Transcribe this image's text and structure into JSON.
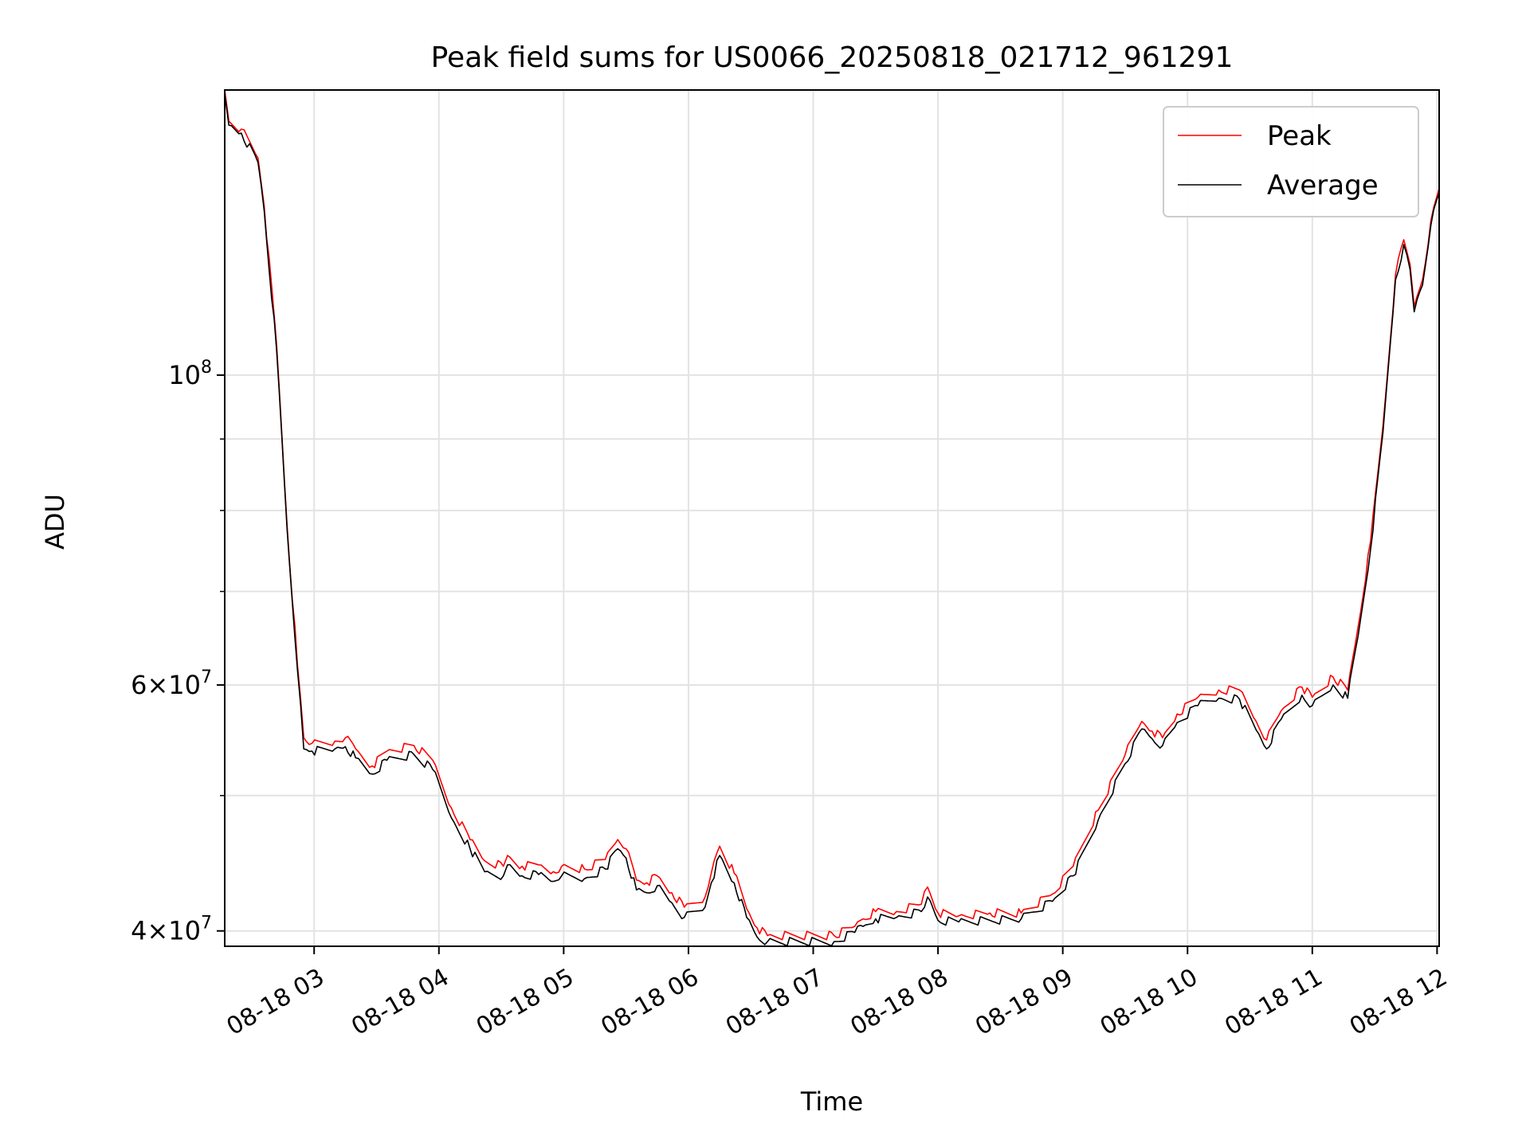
{
  "chart_data": {
    "type": "line",
    "title": "Peak field sums for US0066_20250818_021712_961291",
    "xlabel": "Time",
    "ylabel": "ADU",
    "y_scale": "log",
    "grid": true,
    "legend_position": "top-right",
    "x_range": [
      "2025-08-18 02:17",
      "2025-08-18 12:01"
    ],
    "y_range": [
      39000000,
      160000000
    ],
    "x_ticks": [
      {
        "time": "2025-08-18 03:00",
        "label": "08-18 03"
      },
      {
        "time": "2025-08-18 04:00",
        "label": "08-18 04"
      },
      {
        "time": "2025-08-18 05:00",
        "label": "08-18 05"
      },
      {
        "time": "2025-08-18 06:00",
        "label": "08-18 06"
      },
      {
        "time": "2025-08-18 07:00",
        "label": "08-18 07"
      },
      {
        "time": "2025-08-18 08:00",
        "label": "08-18 08"
      },
      {
        "time": "2025-08-18 09:00",
        "label": "08-18 09"
      },
      {
        "time": "2025-08-18 10:00",
        "label": "08-18 10"
      },
      {
        "time": "2025-08-18 11:00",
        "label": "08-18 11"
      },
      {
        "time": "2025-08-18 12:00",
        "label": "08-18 12"
      }
    ],
    "y_major_ticks": [
      {
        "value": 40000000,
        "mantissa": "4",
        "exponent": "7"
      },
      {
        "value": 60000000,
        "mantissa": "6",
        "exponent": "7"
      },
      {
        "value": 100000000,
        "mantissa": "",
        "exponent": "8"
      }
    ],
    "y_minor_ticks": [
      50000000,
      70000000,
      80000000,
      90000000
    ],
    "series": [
      {
        "name": "Peak",
        "color": "#ff0000",
        "points": [
          [
            "2025-08-18 02:17",
            160000000
          ],
          [
            "2025-08-18 02:19",
            152000000
          ],
          [
            "2025-08-18 02:25",
            150000000
          ],
          [
            "2025-08-18 02:33",
            143000000
          ],
          [
            "2025-08-18 02:36",
            132000000
          ],
          [
            "2025-08-18 02:42",
            105000000
          ],
          [
            "2025-08-18 02:47",
            78000000
          ],
          [
            "2025-08-18 02:52",
            62000000
          ],
          [
            "2025-08-18 02:55",
            55000000
          ],
          [
            "2025-08-18 02:59",
            54500000
          ],
          [
            "2025-08-18 03:10",
            54700000
          ],
          [
            "2025-08-18 03:15",
            55000000
          ],
          [
            "2025-08-18 03:20",
            54000000
          ],
          [
            "2025-08-18 03:28",
            52500000
          ],
          [
            "2025-08-18 03:35",
            53800000
          ],
          [
            "2025-08-18 03:48",
            54300000
          ],
          [
            "2025-08-18 03:57",
            53000000
          ],
          [
            "2025-08-18 04:06",
            49000000
          ],
          [
            "2025-08-18 04:15",
            46500000
          ],
          [
            "2025-08-18 04:22",
            44900000
          ],
          [
            "2025-08-18 04:31",
            44500000
          ],
          [
            "2025-08-18 04:33",
            45300000
          ],
          [
            "2025-08-18 04:40",
            44500000
          ],
          [
            "2025-08-18 04:48",
            44600000
          ],
          [
            "2025-08-18 04:55",
            44100000
          ],
          [
            "2025-08-18 04:59",
            44500000
          ],
          [
            "2025-08-18 05:10",
            44300000
          ],
          [
            "2025-08-18 05:20",
            45000000
          ],
          [
            "2025-08-18 05:26",
            46500000
          ],
          [
            "2025-08-18 05:30",
            45800000
          ],
          [
            "2025-08-18 05:35",
            43500000
          ],
          [
            "2025-08-18 05:40",
            43300000
          ],
          [
            "2025-08-18 05:45",
            43800000
          ],
          [
            "2025-08-18 05:52",
            42600000
          ],
          [
            "2025-08-18 05:58",
            41600000
          ],
          [
            "2025-08-18 06:08",
            42300000
          ],
          [
            "2025-08-18 06:11",
            44000000
          ],
          [
            "2025-08-18 06:15",
            46000000
          ],
          [
            "2025-08-18 06:22",
            44000000
          ],
          [
            "2025-08-18 06:28",
            41500000
          ],
          [
            "2025-08-18 06:33",
            40200000
          ],
          [
            "2025-08-18 06:38",
            39700000
          ],
          [
            "2025-08-18 07:10",
            39700000
          ],
          [
            "2025-08-18 07:20",
            40300000
          ],
          [
            "2025-08-18 07:24",
            40800000
          ],
          [
            "2025-08-18 07:30",
            41300000
          ],
          [
            "2025-08-18 07:40",
            41300000
          ],
          [
            "2025-08-18 07:52",
            41800000
          ],
          [
            "2025-08-18 07:55",
            43000000
          ],
          [
            "2025-08-18 08:00",
            41200000
          ],
          [
            "2025-08-18 08:10",
            41000000
          ],
          [
            "2025-08-18 08:25",
            41200000
          ],
          [
            "2025-08-18 08:40",
            41200000
          ],
          [
            "2025-08-18 08:55",
            42500000
          ],
          [
            "2025-08-18 09:05",
            44500000
          ],
          [
            "2025-08-18 09:17",
            48800000
          ],
          [
            "2025-08-18 09:30",
            53500000
          ],
          [
            "2025-08-18 09:38",
            56500000
          ],
          [
            "2025-08-18 09:43",
            55600000
          ],
          [
            "2025-08-18 09:48",
            55000000
          ],
          [
            "2025-08-18 09:55",
            57200000
          ],
          [
            "2025-08-18 10:05",
            58800000
          ],
          [
            "2025-08-18 10:15",
            59500000
          ],
          [
            "2025-08-18 10:25",
            59500000
          ],
          [
            "2025-08-18 10:33",
            56500000
          ],
          [
            "2025-08-18 10:38",
            54800000
          ],
          [
            "2025-08-18 10:45",
            57500000
          ],
          [
            "2025-08-18 10:55",
            59800000
          ],
          [
            "2025-08-18 11:00",
            58800000
          ],
          [
            "2025-08-18 11:10",
            60800000
          ],
          [
            "2025-08-18 11:17",
            59500000
          ],
          [
            "2025-08-18 11:22",
            66000000
          ],
          [
            "2025-08-18 11:28",
            76000000
          ],
          [
            "2025-08-18 11:34",
            92000000
          ],
          [
            "2025-08-18 11:40",
            118000000
          ],
          [
            "2025-08-18 11:44",
            125000000
          ],
          [
            "2025-08-18 11:47",
            120000000
          ],
          [
            "2025-08-18 11:49",
            112000000
          ],
          [
            "2025-08-18 11:53",
            117000000
          ],
          [
            "2025-08-18 11:57",
            129000000
          ],
          [
            "2025-08-18 12:01",
            136000000
          ]
        ]
      },
      {
        "name": "Average",
        "color": "#000000",
        "points": [
          [
            "2025-08-18 02:17",
            159000000
          ],
          [
            "2025-08-18 02:19",
            151000000
          ],
          [
            "2025-08-18 02:25",
            149000000
          ],
          [
            "2025-08-18 02:33",
            142000000
          ],
          [
            "2025-08-18 02:36",
            131000000
          ],
          [
            "2025-08-18 02:42",
            104000000
          ],
          [
            "2025-08-18 02:47",
            77500000
          ],
          [
            "2025-08-18 02:52",
            61500000
          ],
          [
            "2025-08-18 02:55",
            54000000
          ],
          [
            "2025-08-18 02:59",
            53800000
          ],
          [
            "2025-08-18 03:10",
            54000000
          ],
          [
            "2025-08-18 03:15",
            54200000
          ],
          [
            "2025-08-18 03:20",
            53200000
          ],
          [
            "2025-08-18 03:28",
            51800000
          ],
          [
            "2025-08-18 03:35",
            53000000
          ],
          [
            "2025-08-18 03:48",
            53500000
          ],
          [
            "2025-08-18 03:57",
            52200000
          ],
          [
            "2025-08-18 04:06",
            48200000
          ],
          [
            "2025-08-18 04:15",
            45800000
          ],
          [
            "2025-08-18 04:22",
            44100000
          ],
          [
            "2025-08-18 04:31",
            43800000
          ],
          [
            "2025-08-18 04:33",
            44600000
          ],
          [
            "2025-08-18 04:40",
            43800000
          ],
          [
            "2025-08-18 04:48",
            43900000
          ],
          [
            "2025-08-18 04:55",
            43400000
          ],
          [
            "2025-08-18 04:59",
            43800000
          ],
          [
            "2025-08-18 05:10",
            43600000
          ],
          [
            "2025-08-18 05:20",
            44300000
          ],
          [
            "2025-08-18 05:26",
            45800000
          ],
          [
            "2025-08-18 05:30",
            45100000
          ],
          [
            "2025-08-18 05:35",
            42800000
          ],
          [
            "2025-08-18 05:40",
            42600000
          ],
          [
            "2025-08-18 05:45",
            43100000
          ],
          [
            "2025-08-18 05:52",
            41900000
          ],
          [
            "2025-08-18 05:58",
            40900000
          ],
          [
            "2025-08-18 06:08",
            41600000
          ],
          [
            "2025-08-18 06:11",
            43300000
          ],
          [
            "2025-08-18 06:15",
            45300000
          ],
          [
            "2025-08-18 06:22",
            43300000
          ],
          [
            "2025-08-18 06:28",
            40900000
          ],
          [
            "2025-08-18 06:33",
            39600000
          ],
          [
            "2025-08-18 06:38",
            39300000
          ],
          [
            "2025-08-18 07:10",
            39300000
          ],
          [
            "2025-08-18 07:20",
            39900000
          ],
          [
            "2025-08-18 07:24",
            40300000
          ],
          [
            "2025-08-18 07:30",
            40800000
          ],
          [
            "2025-08-18 07:40",
            40900000
          ],
          [
            "2025-08-18 07:52",
            41300000
          ],
          [
            "2025-08-18 07:55",
            42300000
          ],
          [
            "2025-08-18 08:00",
            40700000
          ],
          [
            "2025-08-18 08:10",
            40600000
          ],
          [
            "2025-08-18 08:25",
            40700000
          ],
          [
            "2025-08-18 08:40",
            40800000
          ],
          [
            "2025-08-18 08:55",
            42000000
          ],
          [
            "2025-08-18 09:05",
            43800000
          ],
          [
            "2025-08-18 09:17",
            48000000
          ],
          [
            "2025-08-18 09:30",
            52700000
          ],
          [
            "2025-08-18 09:38",
            55800000
          ],
          [
            "2025-08-18 09:43",
            54900000
          ],
          [
            "2025-08-18 09:48",
            54300000
          ],
          [
            "2025-08-18 09:55",
            56400000
          ],
          [
            "2025-08-18 10:05",
            58000000
          ],
          [
            "2025-08-18 10:15",
            58700000
          ],
          [
            "2025-08-18 10:25",
            58600000
          ],
          [
            "2025-08-18 10:33",
            55700000
          ],
          [
            "2025-08-18 10:38",
            54000000
          ],
          [
            "2025-08-18 10:45",
            56700000
          ],
          [
            "2025-08-18 10:55",
            59000000
          ],
          [
            "2025-08-18 11:00",
            58000000
          ],
          [
            "2025-08-18 11:10",
            60000000
          ],
          [
            "2025-08-18 11:17",
            58700000
          ],
          [
            "2025-08-18 11:22",
            65000000
          ],
          [
            "2025-08-18 11:28",
            75000000
          ],
          [
            "2025-08-18 11:34",
            91000000
          ],
          [
            "2025-08-18 11:40",
            117000000
          ],
          [
            "2025-08-18 11:44",
            124000000
          ],
          [
            "2025-08-18 11:47",
            119000000
          ],
          [
            "2025-08-18 11:49",
            111000000
          ],
          [
            "2025-08-18 11:53",
            116000000
          ],
          [
            "2025-08-18 11:57",
            128000000
          ],
          [
            "2025-08-18 12:01",
            135000000
          ]
        ]
      }
    ]
  }
}
